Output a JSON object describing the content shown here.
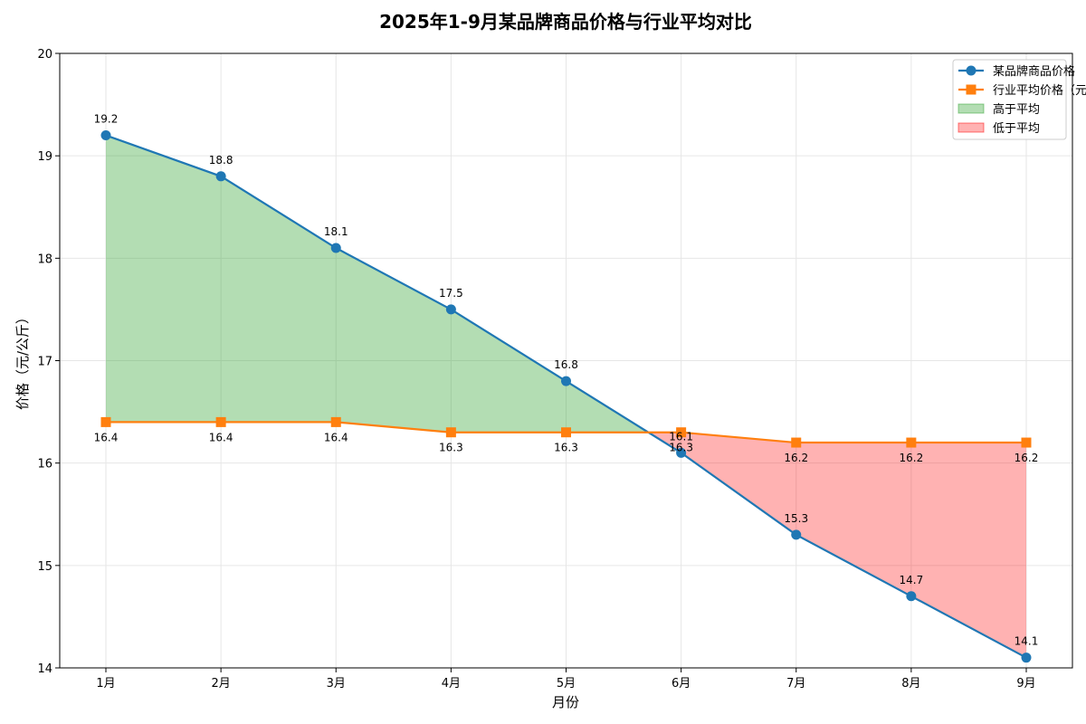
{
  "chart_data": {
    "type": "line",
    "title": "2025年1-9月某品牌商品价格与行业平均对比",
    "xlabel": "月份",
    "ylabel": "价格（元/公斤）",
    "categories": [
      "1月",
      "2月",
      "3月",
      "4月",
      "5月",
      "6月",
      "7月",
      "8月",
      "9月"
    ],
    "ylim": [
      14,
      20
    ],
    "yticks": [
      "14",
      "15",
      "16",
      "17",
      "18",
      "19",
      "20"
    ],
    "grid": true,
    "legend_position": "top-right",
    "series": [
      {
        "name": "某品牌商品价格",
        "values": [
          19.2,
          18.8,
          18.1,
          17.5,
          16.8,
          16.1,
          15.3,
          14.7,
          14.1
        ],
        "labels": [
          "19.2",
          "18.8",
          "18.1",
          "17.5",
          "16.8",
          "16.1",
          "15.3",
          "14.7",
          "14.1"
        ],
        "color": "#1f77b4",
        "marker": "circle"
      },
      {
        "name": "行业平均价格（元）",
        "values": [
          16.4,
          16.4,
          16.4,
          16.3,
          16.3,
          16.3,
          16.2,
          16.2,
          16.2
        ],
        "labels": [
          "16.4",
          "16.4",
          "16.4",
          "16.3",
          "16.3",
          "16.3",
          "16.2",
          "16.2",
          "16.2"
        ],
        "color": "#ff7f0e",
        "marker": "square"
      }
    ],
    "fills": [
      {
        "name": "高于平均",
        "color": "#2ca02c",
        "opacity": 0.36
      },
      {
        "name": "低于平均",
        "color": "#ff0000",
        "opacity": 0.3
      }
    ]
  }
}
